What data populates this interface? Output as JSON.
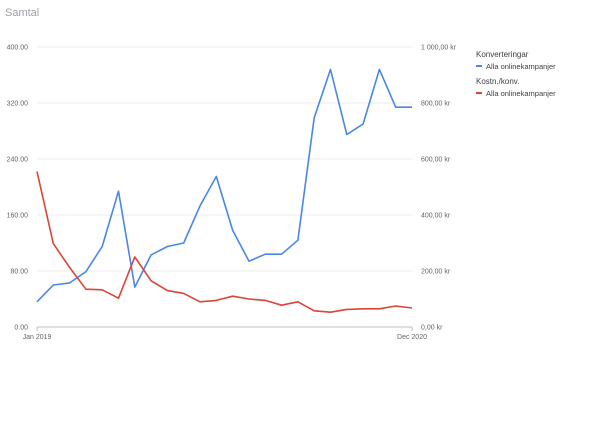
{
  "chart_data": {
    "type": "line",
    "title": "Samtal",
    "x_labels": [
      "Jan 2019",
      "Dec 2020"
    ],
    "x": [
      "Jan 2019",
      "Feb 2019",
      "Mar 2019",
      "Apr 2019",
      "May 2019",
      "Jun 2019",
      "Jul 2019",
      "Aug 2019",
      "Sep 2019",
      "Oct 2019",
      "Nov 2019",
      "Dec 2019",
      "Jan 2020",
      "Feb 2020",
      "Mar 2020",
      "Apr 2020",
      "May 2020",
      "Jun 2020",
      "Jul 2020",
      "Aug 2020",
      "Sep 2020",
      "Oct 2020",
      "Nov 2020",
      "Dec 2020"
    ],
    "y_left": {
      "ticks": [
        "0.00",
        "80.00",
        "160.00",
        "240.00",
        "320.00",
        "400.00"
      ],
      "range": [
        0,
        400
      ]
    },
    "y_right": {
      "ticks": [
        "0,00 kr",
        "200,00 kr",
        "400,00 kr",
        "600,00 kr",
        "800,00 kr",
        "1 000,00 kr"
      ],
      "range": [
        0,
        1000
      ]
    },
    "series": [
      {
        "name": "Alla onlinekampanjer",
        "group": "Konverteringar",
        "axis": "left",
        "color": "#4a86e8",
        "values": [
          36,
          60,
          63,
          79,
          115,
          194,
          57,
          103,
          115,
          120,
          173,
          215,
          138,
          94,
          104,
          104,
          124,
          299,
          368,
          275,
          290,
          368,
          314,
          314
        ]
      },
      {
        "name": "Alla onlinekampanjer",
        "group": "Kostn./konv.",
        "axis": "right",
        "color": "#db4437",
        "values": [
          555,
          298,
          213,
          135,
          133,
          103,
          250,
          165,
          130,
          120,
          90,
          95,
          110,
          100,
          95,
          78,
          90,
          58,
          53,
          63,
          65,
          65,
          75,
          68
        ]
      }
    ],
    "legend": {
      "position": "right",
      "groups": [
        {
          "title": "Konverteringar",
          "label": "Alla onlinekampanjer",
          "color": "#4a86e8"
        },
        {
          "title": "Kostn./konv.",
          "label": "Alla onlinekampanjer",
          "color": "#db4437"
        }
      ]
    },
    "grid": true
  }
}
